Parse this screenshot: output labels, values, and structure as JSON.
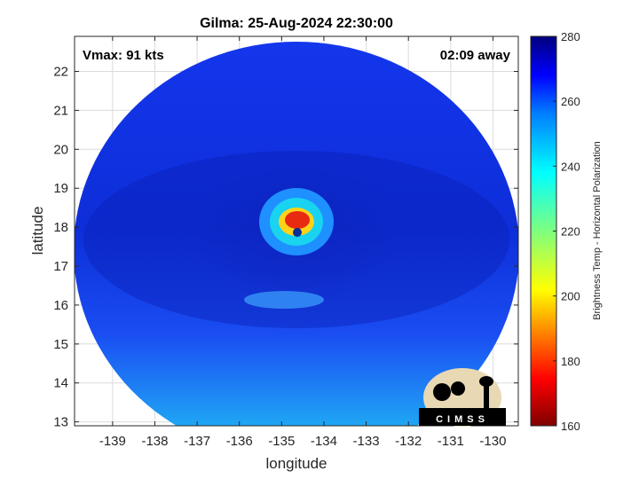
{
  "chart_data": {
    "type": "heatmap",
    "title": "Gilma: 25-Aug-2024 22:30:00",
    "xlabel": "longitude",
    "ylabel": "latitude",
    "xlim": [
      -139.9,
      -129.4
    ],
    "ylim": [
      12.9,
      22.9
    ],
    "xticks": [
      -139,
      -138,
      -137,
      -136,
      -135,
      -134,
      -133,
      -132,
      -131,
      -130
    ],
    "yticks": [
      13,
      14,
      15,
      16,
      17,
      18,
      19,
      20,
      21,
      22
    ],
    "grid": true,
    "annotations": {
      "left": "Vmax: 91 kts",
      "right": "02:09 away"
    },
    "colorbar": {
      "label": "Brightness Temp - Horizontal Polarization",
      "min": 160,
      "max": 280,
      "ticks": [
        160,
        180,
        200,
        220,
        240,
        260,
        280
      ]
    },
    "storm_center": {
      "lon": -134.6,
      "lat": 18.1
    },
    "eye_wall_temp_min": 175,
    "background_temp": 262,
    "logo_text": "CIMSS"
  }
}
